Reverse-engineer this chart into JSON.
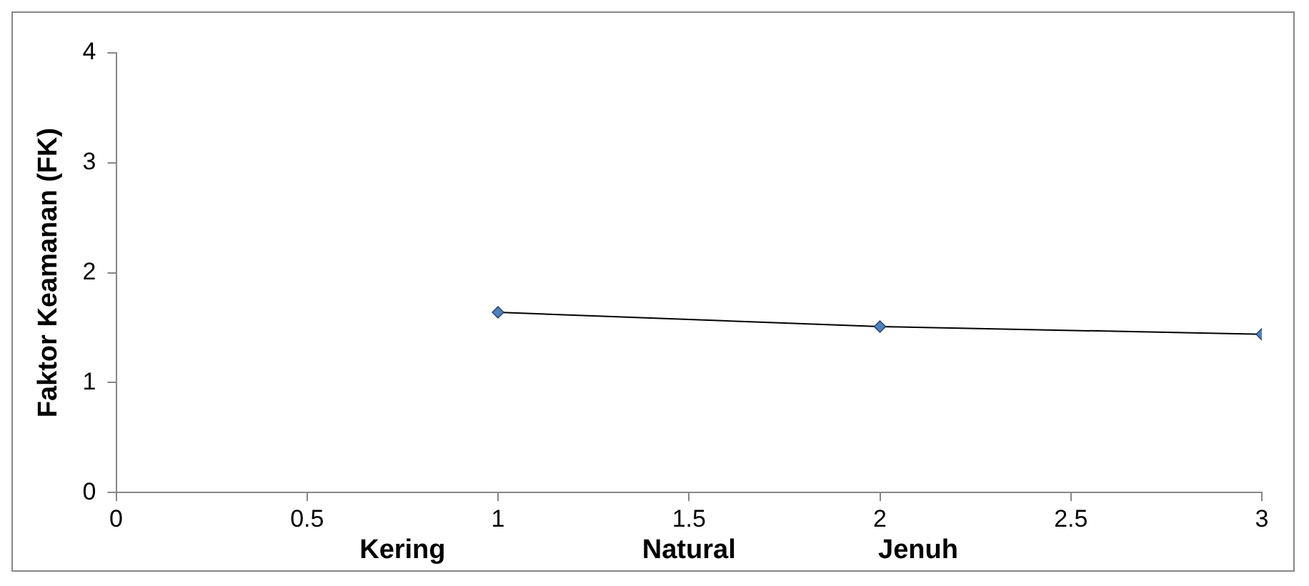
{
  "chart_data": {
    "type": "line",
    "ylabel": "Faktor Keamanan (FK)",
    "x": [
      1,
      2,
      3
    ],
    "series": [
      {
        "color": "#4f81bd",
        "values": [
          1.64,
          1.51,
          1.44
        ]
      }
    ],
    "xlim": [
      0,
      3
    ],
    "xticks": [
      0,
      0.5,
      1,
      1.5,
      2,
      2.5,
      3
    ],
    "ylim": [
      0,
      4
    ],
    "yticks": [
      0,
      1,
      2,
      3,
      4
    ],
    "grid": false,
    "legend": false,
    "marker": "diamond",
    "line_style": "solid",
    "annotations": [
      "Kering",
      "Natural",
      "Jenuh"
    ]
  }
}
